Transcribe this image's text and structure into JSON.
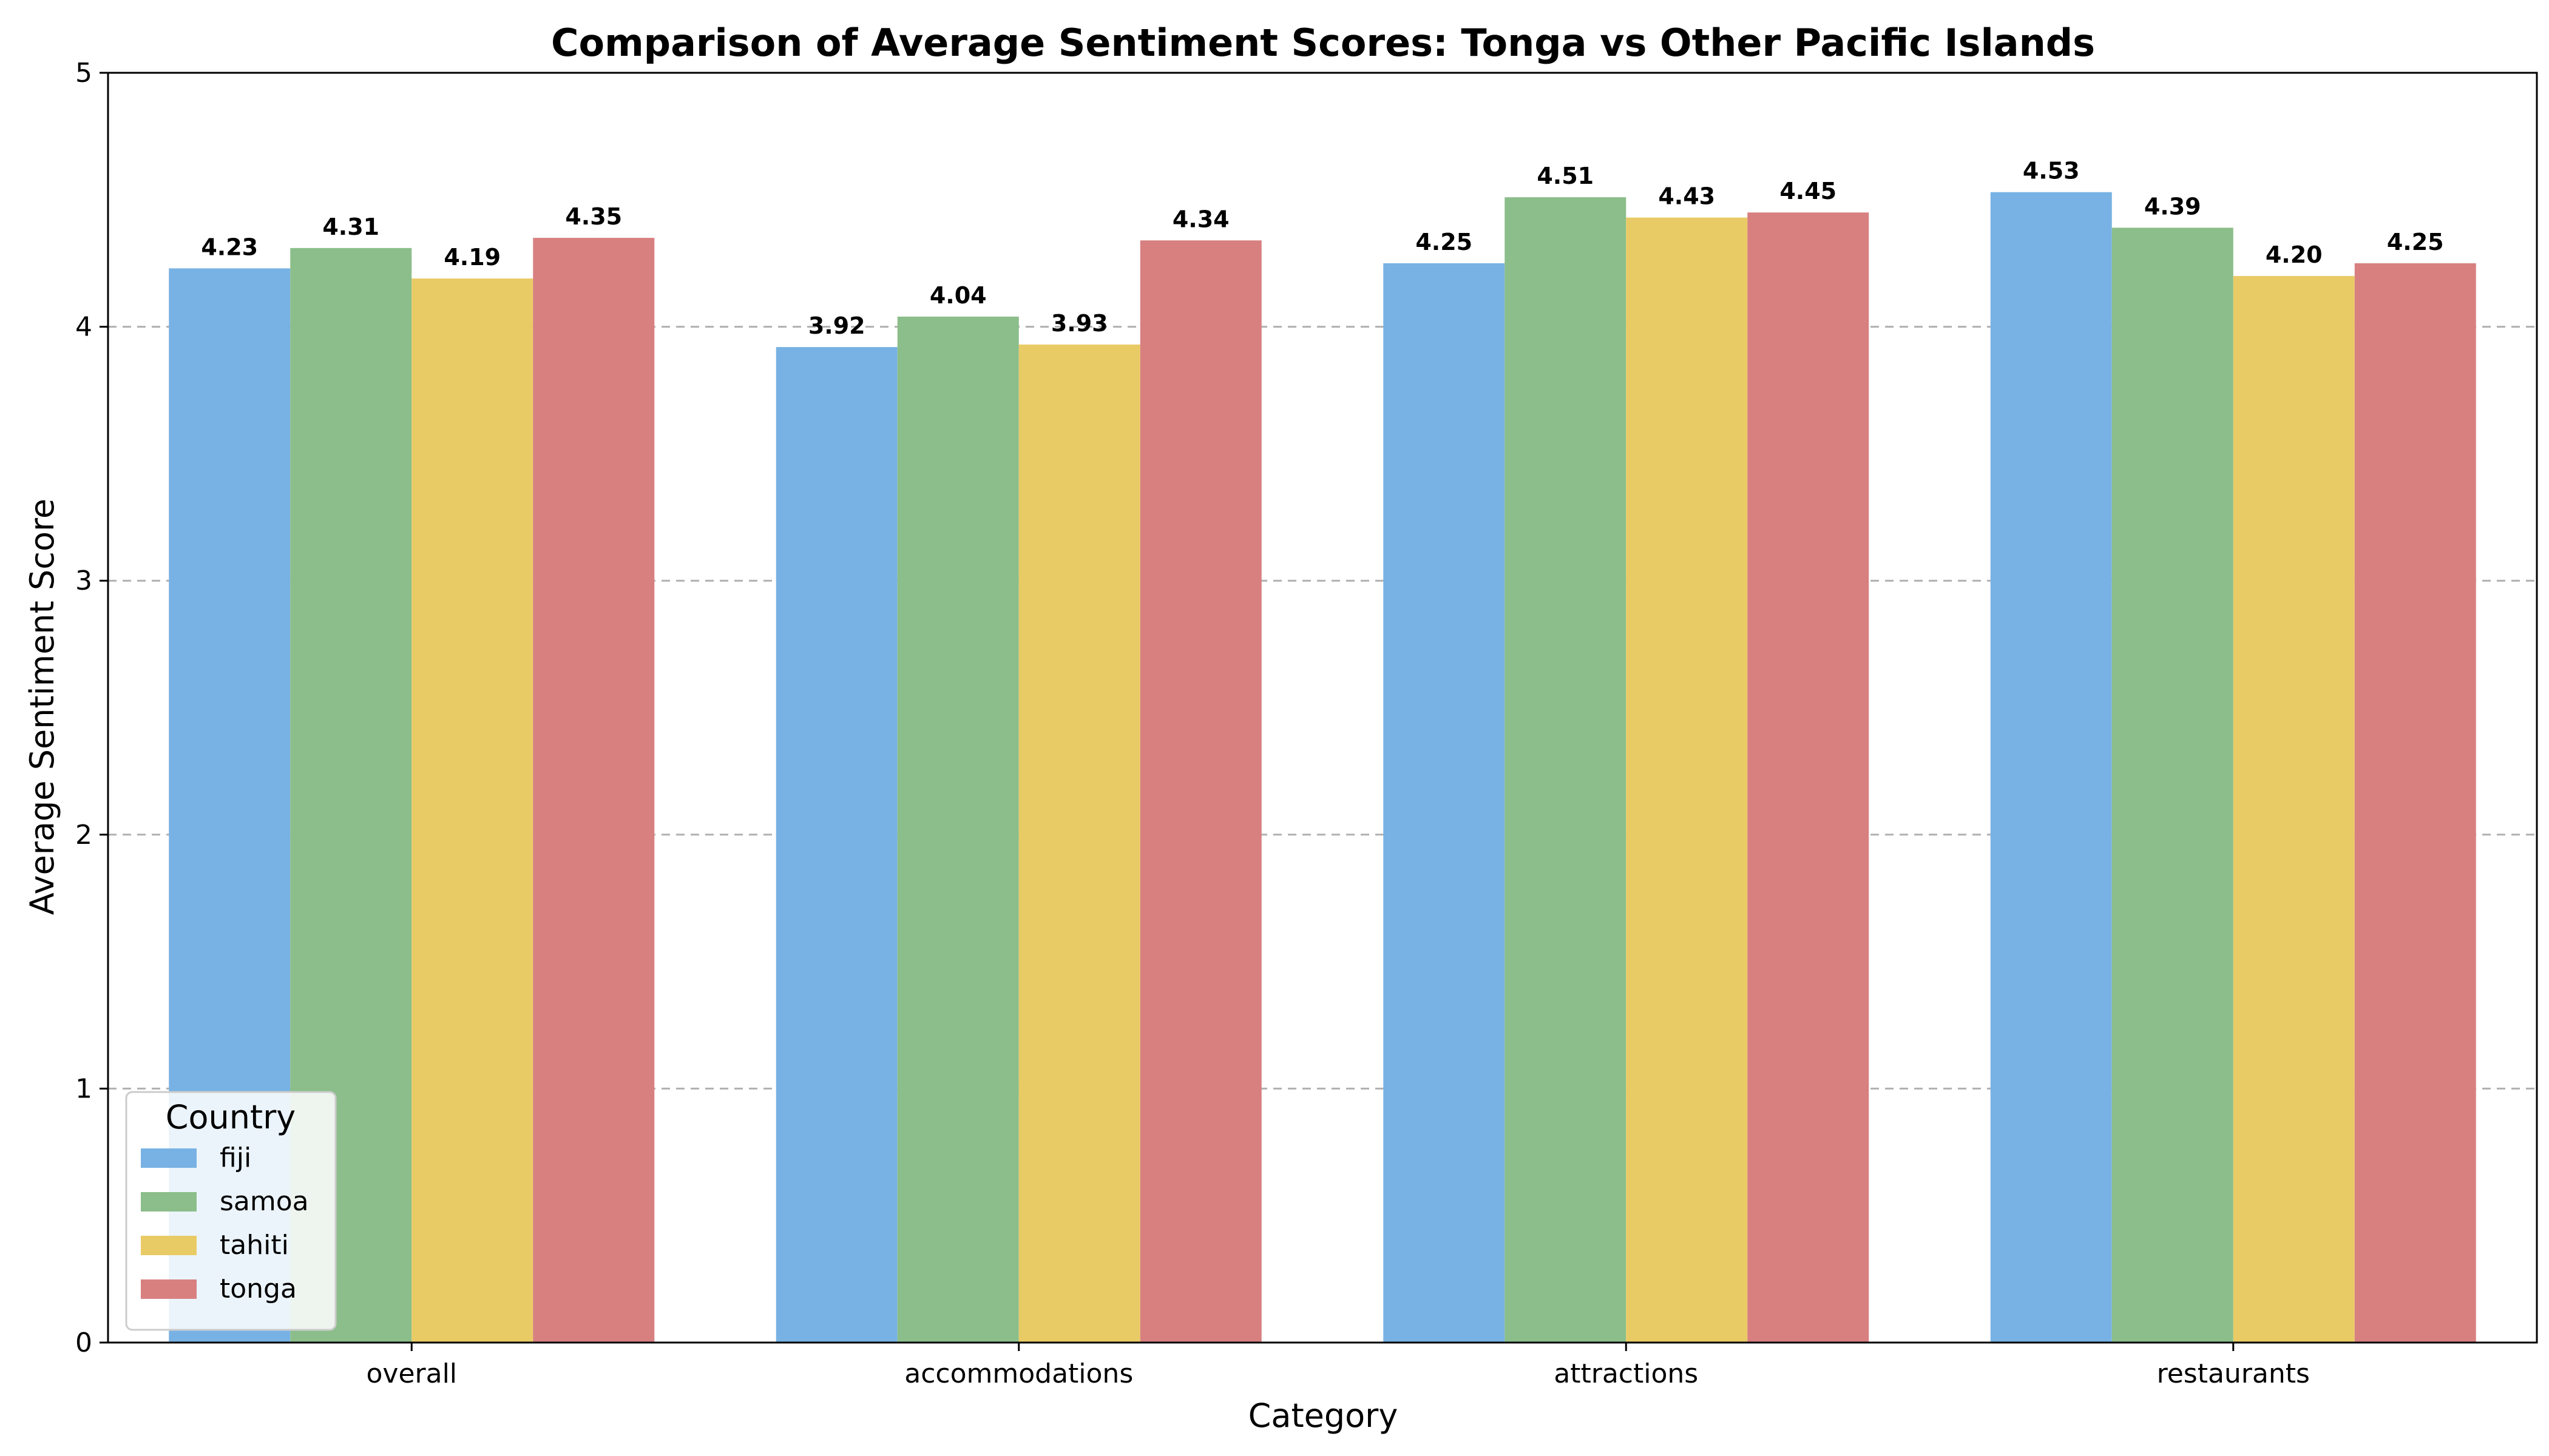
{
  "chart_data": {
    "type": "bar",
    "title": "Comparison of Average Sentiment Scores: Tonga vs Other Pacific Islands",
    "xlabel": "Category",
    "ylabel": "Average Sentiment Score",
    "ylim": [
      0,
      5
    ],
    "yticks": [
      0,
      1,
      2,
      3,
      4,
      5
    ],
    "grid": "y-dashed",
    "categories": [
      "overall",
      "accommodations",
      "attractions",
      "restaurants"
    ],
    "series": [
      {
        "name": "fiji",
        "color": "#78b2e4",
        "values": [
          4.23,
          3.92,
          4.25,
          4.53
        ],
        "labels": [
          "4.23",
          "3.92",
          "4.25",
          "4.53"
        ]
      },
      {
        "name": "samoa",
        "color": "#8bbe8a",
        "values": [
          4.31,
          4.04,
          4.51,
          4.39
        ],
        "labels": [
          "4.31",
          "4.04",
          "4.51",
          "4.39"
        ]
      },
      {
        "name": "tahiti",
        "color": "#e9cb66",
        "values": [
          4.19,
          3.93,
          4.43,
          4.2
        ],
        "labels": [
          "4.19",
          "3.93",
          "4.43",
          "4.20"
        ]
      },
      {
        "name": "tonga",
        "color": "#d88080",
        "values": [
          4.35,
          4.34,
          4.45,
          4.25
        ],
        "labels": [
          "4.35",
          "4.34",
          "4.45",
          "4.25"
        ]
      }
    ],
    "legend": {
      "title": "Country",
      "position": "lower-left"
    }
  }
}
